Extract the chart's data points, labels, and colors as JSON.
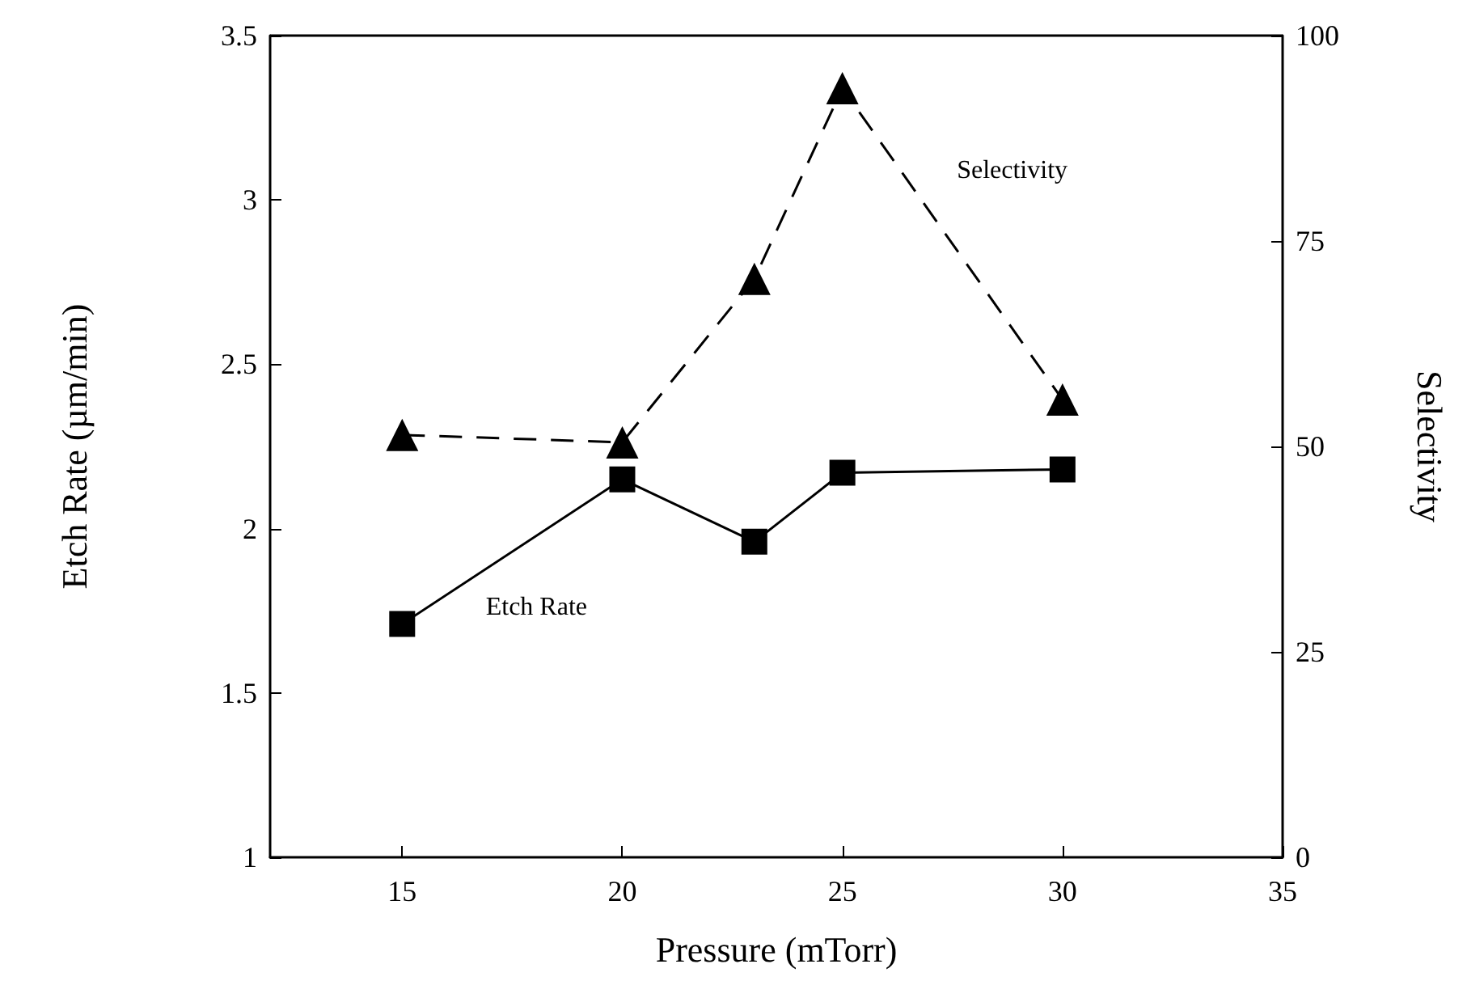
{
  "chart_data": {
    "type": "line",
    "xlabel": "Pressure (mTorr)",
    "ylabel": "Etch Rate (µm/min)",
    "y2label": "Selectivity",
    "x": [
      15,
      20,
      23,
      25,
      30
    ],
    "series": [
      {
        "name": "Etch Rate",
        "color": "#000000",
        "values": [
          1.71,
          2.15,
          1.96,
          2.17,
          2.18
        ],
        "marker": "square",
        "line_style": "solid"
      },
      {
        "name": "Selectivity",
        "color": "#000000",
        "values": [
          51.4,
          50.5,
          70.4,
          93.6,
          55.7
        ],
        "marker": "triangle",
        "line_style": "dashed",
        "axis": "y2"
      }
    ],
    "xlim": [
      12,
      35
    ],
    "xticks": [
      15,
      20,
      25,
      30,
      35
    ],
    "ylim": [
      1,
      3.5
    ],
    "yticks": [
      1,
      1.5,
      2,
      2.5,
      3,
      3.5
    ],
    "y2lim": [
      0,
      100
    ],
    "y2ticks": [
      0,
      25,
      50,
      75,
      100
    ],
    "grid": false,
    "legend": false
  }
}
